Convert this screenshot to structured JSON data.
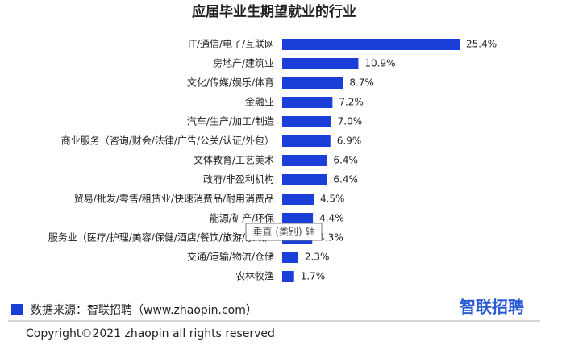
{
  "chart_data": {
    "type": "bar",
    "orientation": "horizontal",
    "title": "应届毕业生期望就业的行业",
    "categories": [
      "IT/通信/电子/互联网",
      "房地产/建筑业",
      "文化/传媒/娱乐/体育",
      "金融业",
      "汽车/生产/加工/制造",
      "商业服务（咨询/财会/法律/广告/公关/认证/外包）",
      "文体教育/工艺美术",
      "政府/非盈利机构",
      "贸易/批发/零售/租赁业/快速消费品/耐用消费品",
      "能源/矿产/环保",
      "服务业（医疗/护理/美容/保健/酒店/餐饮/旅游/家政）",
      "交通/运输/物流/仓储",
      "农林牧渔"
    ],
    "values": [
      25.4,
      10.9,
      8.7,
      7.2,
      7.0,
      6.9,
      6.4,
      6.4,
      4.5,
      4.4,
      4.3,
      2.3,
      1.7
    ],
    "value_labels": [
      "25.4%",
      "10.9%",
      "8.7%",
      "7.2%",
      "7.0%",
      "6.9%",
      "6.4%",
      "6.4%",
      "4.5%",
      "4.4%",
      "4.3%",
      "2.3%",
      "1.7%"
    ],
    "color": "#1a3fd8",
    "tooltip": "垂直 (类别) 轴",
    "source": "数据来源：智联招聘（www.zhaopin.com）",
    "logo": "智联招聘",
    "copyright": "Copyright©2021 zhaopin all rights reserved"
  }
}
